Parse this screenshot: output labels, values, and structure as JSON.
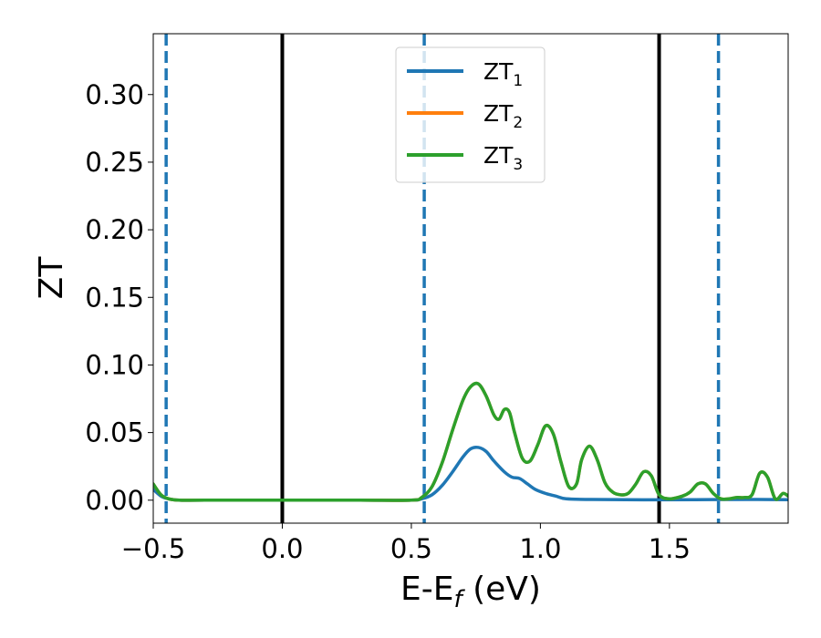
{
  "chart_data": {
    "type": "line",
    "xlabel": "E-E",
    "xlabel_sub": "f",
    "xlabel_unit": " (eV)",
    "ylabel": "ZT",
    "xlim": [
      -0.5,
      1.96
    ],
    "ylim": [
      -0.017,
      0.345
    ],
    "xticks": [
      -0.5,
      0.0,
      0.5,
      1.0,
      1.5
    ],
    "xtick_labels": [
      "−0.5",
      "0.0",
      "0.5",
      "1.0",
      "1.5"
    ],
    "yticks": [
      0.0,
      0.05,
      0.1,
      0.15,
      0.2,
      0.25,
      0.3
    ],
    "ytick_labels": [
      "0.00",
      "0.05",
      "0.10",
      "0.15",
      "0.20",
      "0.25",
      "0.30"
    ],
    "grid": false,
    "legend_position": "upper center",
    "vertical_lines": [
      {
        "x": 0.0,
        "style": "solid",
        "color": "#000000"
      },
      {
        "x": 1.46,
        "style": "solid",
        "color": "#000000"
      },
      {
        "x": -0.45,
        "style": "dashed",
        "color": "#1f77b4"
      },
      {
        "x": 0.55,
        "style": "dashed",
        "color": "#1f77b4"
      },
      {
        "x": 1.69,
        "style": "dashed",
        "color": "#1f77b4"
      }
    ],
    "series": [
      {
        "name": "ZT",
        "sub": "1",
        "color": "#1f77b4",
        "x": [
          -0.5,
          -0.47,
          -0.44,
          -0.4,
          -0.3,
          0.0,
          0.3,
          0.5,
          0.54,
          0.58,
          0.62,
          0.66,
          0.7,
          0.73,
          0.76,
          0.79,
          0.82,
          0.86,
          0.89,
          0.92,
          0.95,
          0.98,
          1.02,
          1.06,
          1.1,
          1.2,
          1.4,
          1.6,
          1.8,
          1.96
        ],
        "y": [
          0.008,
          0.003,
          0.001,
          0.0,
          0.0,
          0.0,
          0.0,
          0.0,
          0.001,
          0.004,
          0.011,
          0.021,
          0.032,
          0.038,
          0.039,
          0.036,
          0.029,
          0.021,
          0.017,
          0.016,
          0.012,
          0.008,
          0.005,
          0.003,
          0.001,
          0.0005,
          0.0003,
          0.0004,
          0.0005,
          0.0004
        ]
      },
      {
        "name": "ZT",
        "sub": "2",
        "color": "#ff7f0e",
        "x": [
          -0.5,
          -0.47,
          -0.44,
          -0.4,
          -0.3,
          0.0,
          0.3,
          0.5,
          0.54,
          0.58,
          0.62,
          0.66,
          0.7,
          0.73,
          0.76,
          0.79,
          0.82,
          0.84,
          0.86,
          0.88,
          0.9,
          0.93,
          0.96,
          0.99,
          1.02,
          1.05,
          1.08,
          1.11,
          1.14,
          1.16,
          1.19,
          1.22,
          1.25,
          1.28,
          1.31,
          1.34,
          1.37,
          1.4,
          1.43,
          1.46,
          1.5,
          1.55,
          1.58,
          1.61,
          1.64,
          1.67,
          1.7,
          1.73,
          1.76,
          1.79,
          1.82,
          1.85,
          1.88,
          1.91,
          1.94,
          1.96
        ],
        "y": [
          0.012,
          0.004,
          0.001,
          0.0,
          0.0,
          0.0,
          0.0,
          0.0,
          0.002,
          0.01,
          0.028,
          0.052,
          0.074,
          0.084,
          0.086,
          0.077,
          0.063,
          0.06,
          0.067,
          0.065,
          0.05,
          0.031,
          0.029,
          0.041,
          0.055,
          0.049,
          0.028,
          0.01,
          0.012,
          0.03,
          0.04,
          0.03,
          0.013,
          0.006,
          0.004,
          0.005,
          0.012,
          0.021,
          0.018,
          0.004,
          0.001,
          0.003,
          0.006,
          0.012,
          0.012,
          0.005,
          0.001,
          0.001,
          0.002,
          0.002,
          0.004,
          0.02,
          0.017,
          0.001,
          0.005,
          0.003
        ]
      },
      {
        "name": "ZT",
        "sub": "3",
        "color": "#2ca02c",
        "x": [
          -0.5,
          -0.47,
          -0.44,
          -0.4,
          -0.3,
          0.0,
          0.3,
          0.5,
          0.54,
          0.58,
          0.62,
          0.66,
          0.7,
          0.73,
          0.76,
          0.79,
          0.82,
          0.84,
          0.86,
          0.88,
          0.9,
          0.93,
          0.96,
          0.99,
          1.02,
          1.05,
          1.08,
          1.11,
          1.14,
          1.16,
          1.19,
          1.22,
          1.25,
          1.28,
          1.31,
          1.34,
          1.37,
          1.4,
          1.43,
          1.46,
          1.5,
          1.55,
          1.58,
          1.61,
          1.64,
          1.67,
          1.7,
          1.73,
          1.76,
          1.79,
          1.82,
          1.85,
          1.88,
          1.91,
          1.94,
          1.96
        ],
        "y": [
          0.012,
          0.004,
          0.001,
          0.0,
          0.0,
          0.0,
          0.0,
          0.0,
          0.002,
          0.01,
          0.028,
          0.052,
          0.074,
          0.084,
          0.086,
          0.077,
          0.063,
          0.06,
          0.067,
          0.065,
          0.05,
          0.031,
          0.029,
          0.041,
          0.055,
          0.049,
          0.028,
          0.01,
          0.012,
          0.03,
          0.04,
          0.03,
          0.013,
          0.006,
          0.004,
          0.005,
          0.012,
          0.021,
          0.018,
          0.004,
          0.001,
          0.003,
          0.006,
          0.012,
          0.012,
          0.005,
          0.001,
          0.001,
          0.002,
          0.002,
          0.004,
          0.02,
          0.017,
          0.001,
          0.005,
          0.003
        ]
      }
    ]
  }
}
